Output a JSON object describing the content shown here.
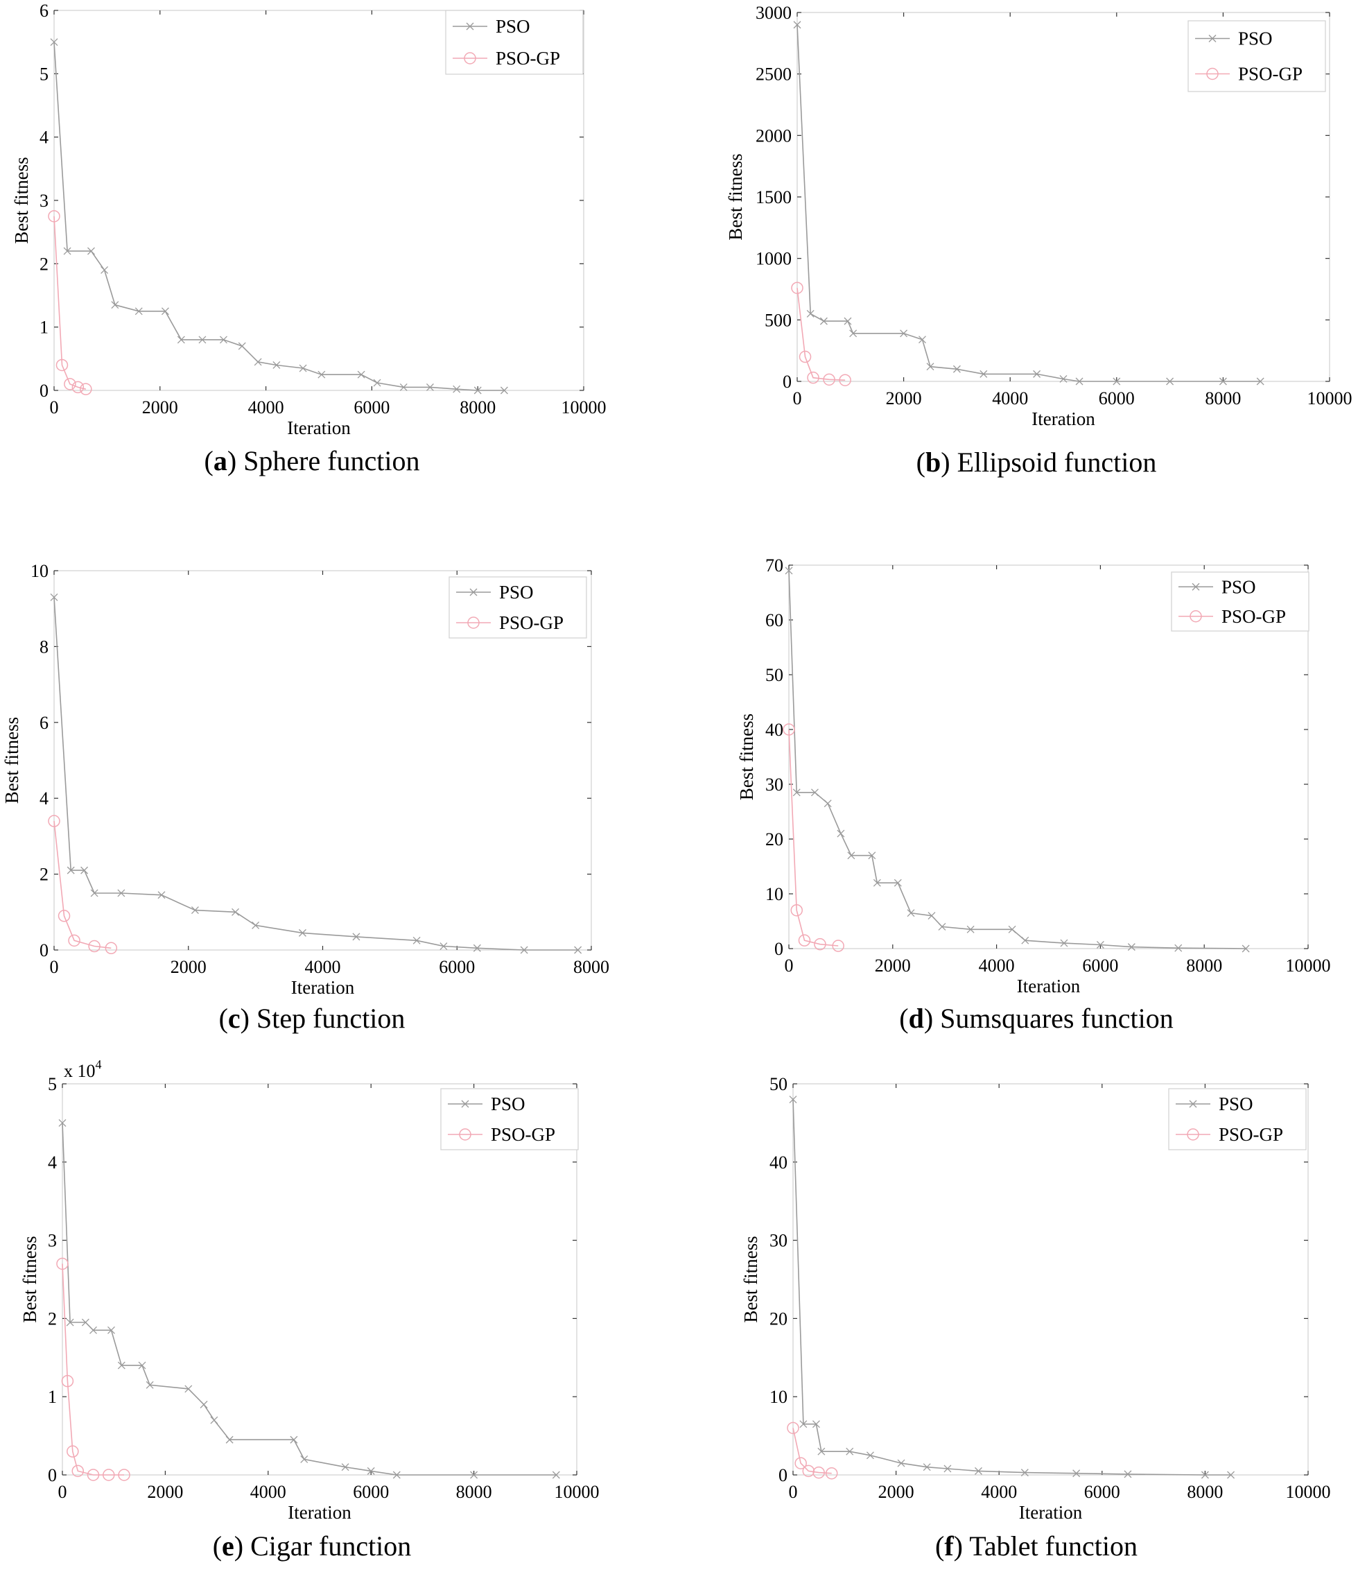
{
  "colors": {
    "pso": "#9a9a9a",
    "pso_gp": "#f2a9b5",
    "frame": "#d0d0d0",
    "text": "#000000"
  },
  "chart_data": [
    {
      "type": "line",
      "caption_letter": "a",
      "caption_text": "Sphere function",
      "xlabel": "Iteration",
      "ylabel": "Best fitness",
      "xlim": [
        0,
        10000
      ],
      "ylim": [
        0,
        6
      ],
      "xticks": [
        "0",
        "2000",
        "4000",
        "6000",
        "8000",
        "10000"
      ],
      "yticks": [
        "0",
        "1",
        "2",
        "3",
        "4",
        "5",
        "6"
      ],
      "y_multiplier": "",
      "legend": [
        "PSO",
        "PSO-GP"
      ],
      "series": [
        {
          "name": "PSO",
          "x": [
            0,
            250,
            700,
            950,
            1150,
            1600,
            2100,
            2400,
            2800,
            3200,
            3550,
            3850,
            4200,
            4700,
            5050,
            5800,
            6100,
            6600,
            7100,
            7600,
            8000,
            8500
          ],
          "y": [
            5.5,
            2.2,
            2.2,
            1.9,
            1.35,
            1.25,
            1.25,
            0.8,
            0.8,
            0.8,
            0.7,
            0.45,
            0.4,
            0.35,
            0.25,
            0.25,
            0.12,
            0.05,
            0.05,
            0.02,
            0.0,
            0.0
          ]
        },
        {
          "name": "PSO-GP",
          "x": [
            0,
            150,
            300,
            450,
            600
          ],
          "y": [
            2.75,
            0.4,
            0.1,
            0.05,
            0.02
          ]
        }
      ]
    },
    {
      "type": "line",
      "caption_letter": "b",
      "caption_text": "Ellipsoid function",
      "xlabel": "Iteration",
      "ylabel": "Best fitness",
      "xlim": [
        0,
        10000
      ],
      "ylim": [
        0,
        3000
      ],
      "xticks": [
        "0",
        "2000",
        "4000",
        "6000",
        "8000",
        "10000"
      ],
      "yticks": [
        "0",
        "500",
        "1000",
        "1500",
        "2000",
        "2500",
        "3000"
      ],
      "y_multiplier": "",
      "legend": [
        "PSO",
        "PSO-GP"
      ],
      "series": [
        {
          "name": "PSO",
          "x": [
            0,
            250,
            500,
            950,
            1050,
            2000,
            2350,
            2500,
            3000,
            3500,
            4500,
            5000,
            5300,
            6000,
            7000,
            8000,
            8700
          ],
          "y": [
            2900,
            550,
            490,
            490,
            390,
            390,
            340,
            120,
            100,
            60,
            60,
            20,
            0,
            0,
            0,
            0,
            0
          ]
        },
        {
          "name": "PSO-GP",
          "x": [
            0,
            150,
            300,
            600,
            900
          ],
          "y": [
            760,
            200,
            30,
            15,
            10
          ]
        }
      ]
    },
    {
      "type": "line",
      "caption_letter": "c",
      "caption_text": "Step function",
      "xlabel": "Iteration",
      "ylabel": "Best fitness",
      "xlim": [
        0,
        8000
      ],
      "ylim": [
        0,
        10
      ],
      "xticks": [
        "0",
        "2000",
        "4000",
        "6000",
        "8000"
      ],
      "yticks": [
        "0",
        "2",
        "4",
        "6",
        "8",
        "10"
      ],
      "y_multiplier": "",
      "legend": [
        "PSO",
        "PSO-GP"
      ],
      "series": [
        {
          "name": "PSO",
          "x": [
            0,
            250,
            450,
            600,
            1000,
            1600,
            2100,
            2700,
            3000,
            3700,
            4500,
            5400,
            5800,
            6300,
            7000,
            7800
          ],
          "y": [
            9.3,
            2.1,
            2.1,
            1.5,
            1.5,
            1.45,
            1.05,
            1.0,
            0.65,
            0.45,
            0.35,
            0.25,
            0.1,
            0.05,
            0.0,
            0.0
          ]
        },
        {
          "name": "PSO-GP",
          "x": [
            0,
            150,
            300,
            600,
            850
          ],
          "y": [
            3.4,
            0.9,
            0.25,
            0.1,
            0.05
          ]
        }
      ]
    },
    {
      "type": "line",
      "caption_letter": "d",
      "caption_text": "Sumsquares function",
      "xlabel": "Iteration",
      "ylabel": "Best fitness",
      "xlim": [
        0,
        10000
      ],
      "ylim": [
        0,
        70
      ],
      "xticks": [
        "0",
        "2000",
        "4000",
        "6000",
        "8000",
        "10000"
      ],
      "yticks": [
        "0",
        "10",
        "20",
        "30",
        "40",
        "50",
        "60",
        "70"
      ],
      "y_multiplier": "",
      "legend": [
        "PSO",
        "PSO-GP"
      ],
      "series": [
        {
          "name": "PSO",
          "x": [
            0,
            150,
            500,
            750,
            1000,
            1200,
            1600,
            1700,
            2100,
            2350,
            2750,
            2950,
            3500,
            4300,
            4550,
            5300,
            6000,
            6600,
            7500,
            8800
          ],
          "y": [
            69,
            28.5,
            28.5,
            26.5,
            21,
            17,
            17,
            12,
            12,
            6.5,
            6,
            4,
            3.5,
            3.5,
            1.5,
            1.0,
            0.7,
            0.3,
            0.1,
            0.0
          ]
        },
        {
          "name": "PSO-GP",
          "x": [
            0,
            150,
            300,
            600,
            950
          ],
          "y": [
            40,
            7,
            1.5,
            0.8,
            0.5
          ]
        }
      ]
    },
    {
      "type": "line",
      "caption_letter": "e",
      "caption_text": "Cigar function",
      "xlabel": "Iteration",
      "ylabel": "Best fitness",
      "xlim": [
        0,
        10000
      ],
      "ylim": [
        0,
        5
      ],
      "xticks": [
        "0",
        "2000",
        "4000",
        "6000",
        "8000",
        "10000"
      ],
      "yticks": [
        "0",
        "1",
        "2",
        "3",
        "4",
        "5"
      ],
      "y_multiplier": "x 10",
      "y_multiplier_exp": "4",
      "legend": [
        "PSO",
        "PSO-GP"
      ],
      "series": [
        {
          "name": "PSO",
          "x": [
            0,
            150,
            450,
            600,
            950,
            1150,
            1550,
            1700,
            2450,
            2750,
            2950,
            3250,
            4500,
            4700,
            5500,
            6000,
            6500,
            8000,
            9600
          ],
          "y": [
            4.5,
            1.95,
            1.95,
            1.85,
            1.85,
            1.4,
            1.4,
            1.15,
            1.1,
            0.9,
            0.7,
            0.45,
            0.45,
            0.2,
            0.1,
            0.05,
            0.0,
            0.0,
            0.0
          ]
        },
        {
          "name": "PSO-GP",
          "x": [
            0,
            100,
            200,
            300,
            600,
            900,
            1200
          ],
          "y": [
            2.7,
            1.2,
            0.3,
            0.05,
            0.0,
            0.0,
            0.0
          ]
        }
      ]
    },
    {
      "type": "line",
      "caption_letter": "f",
      "caption_text": "Tablet function",
      "xlabel": "Iteration",
      "ylabel": "Best fitness",
      "xlim": [
        0,
        10000
      ],
      "ylim": [
        0,
        50
      ],
      "xticks": [
        "0",
        "2000",
        "4000",
        "6000",
        "8000",
        "10000"
      ],
      "yticks": [
        "0",
        "10",
        "20",
        "30",
        "40",
        "50"
      ],
      "y_multiplier": "",
      "legend": [
        "PSO",
        "PSO-GP"
      ],
      "series": [
        {
          "name": "PSO",
          "x": [
            0,
            200,
            450,
            550,
            1100,
            1500,
            2100,
            2600,
            3000,
            3600,
            4500,
            5500,
            6500,
            8000,
            8500
          ],
          "y": [
            48,
            6.5,
            6.5,
            3,
            3,
            2.5,
            1.5,
            1.0,
            0.8,
            0.5,
            0.3,
            0.2,
            0.1,
            0.0,
            0.0
          ]
        },
        {
          "name": "PSO-GP",
          "x": [
            0,
            150,
            300,
            500,
            750
          ],
          "y": [
            6,
            1.5,
            0.5,
            0.3,
            0.2
          ]
        }
      ]
    }
  ]
}
